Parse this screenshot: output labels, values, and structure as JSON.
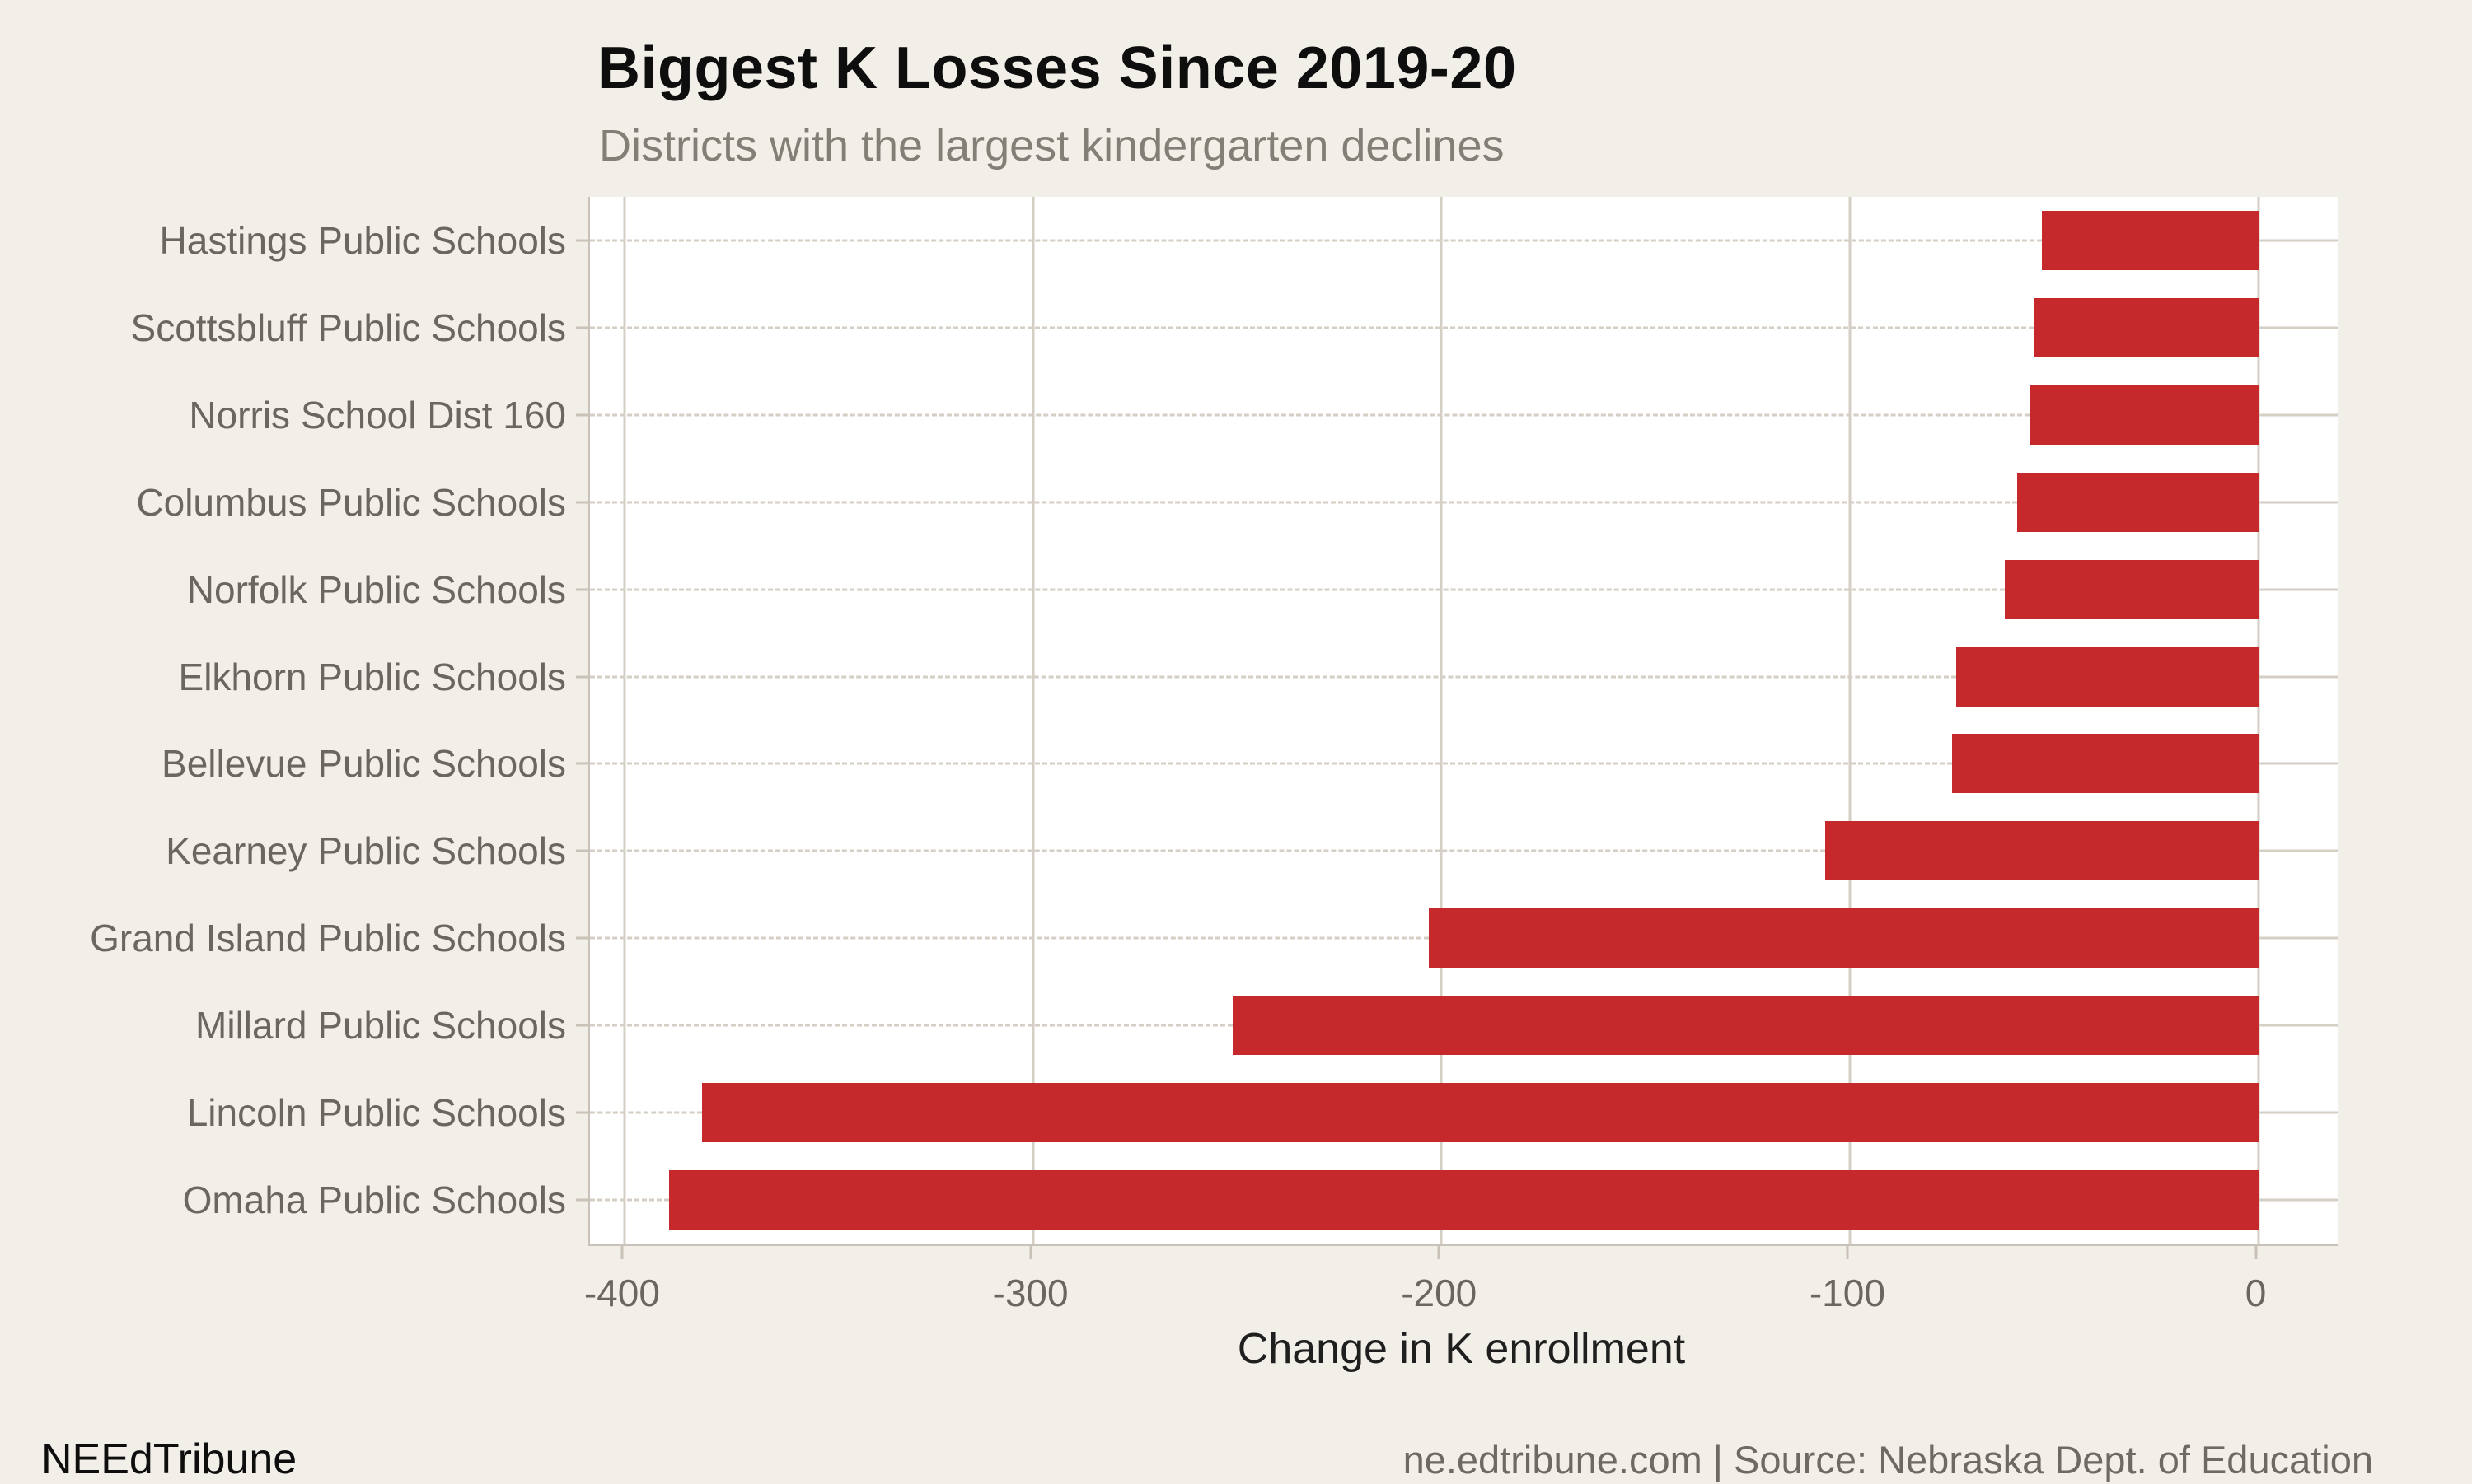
{
  "header": {
    "title": "Biggest K Losses Since 2019-20",
    "subtitle": "Districts with the largest kindergarten declines"
  },
  "footer": {
    "brand": "NEEdTribune",
    "source": "ne.edtribune.com | Source: Nebraska Dept. of Education"
  },
  "colors": {
    "background": "#f2efe8",
    "panel": "#ffffff",
    "bar": "#c5292c",
    "grid": "#d5cec4",
    "axis_line": "#c9c2b8",
    "tick_text": "#6b6660"
  },
  "chart_data": {
    "type": "bar",
    "orientation": "horizontal",
    "title": "Biggest K Losses Since 2019-20",
    "subtitle": "Districts with the largest kindergarten declines",
    "xlabel": "Change in K enrollment",
    "ylabel": "",
    "categories": [
      "Hastings Public Schools",
      "Scottsbluff Public Schools",
      "Norris School Dist 160",
      "Columbus Public Schools",
      "Norfolk Public Schools",
      "Elkhorn Public Schools",
      "Bellevue Public Schools",
      "Kearney Public Schools",
      "Grand Island Public Schools",
      "Millard Public Schools",
      "Lincoln Public Schools",
      "Omaha Public Schools"
    ],
    "values": [
      -53,
      -55,
      -56,
      -59,
      -62,
      -74,
      -75,
      -106,
      -203,
      -251,
      -381,
      -389
    ],
    "x_ticks": [
      -400,
      -300,
      -200,
      -100,
      0
    ],
    "xlim": [
      -408.45,
      19.45
    ],
    "grid": true,
    "legend": false,
    "bar_color": "#c5292c"
  }
}
